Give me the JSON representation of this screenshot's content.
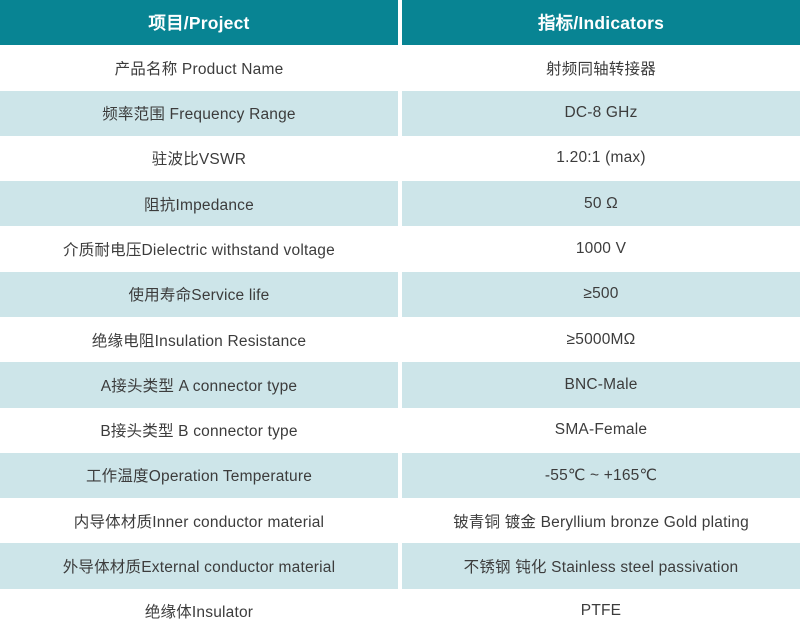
{
  "table": {
    "title": "RF coaxial adapter specification table",
    "columns": [
      {
        "label": "项目/Project"
      },
      {
        "label": "指标/Indicators"
      }
    ],
    "rows": [
      {
        "project": "产品名称 Product Name",
        "indicator": "射频同轴转接器"
      },
      {
        "project": "频率范围 Frequency Range",
        "indicator": "DC-8 GHz"
      },
      {
        "project": "驻波比VSWR",
        "indicator": "1.20:1 (max)"
      },
      {
        "project": "阻抗Impedance",
        "indicator": "50 Ω"
      },
      {
        "project": "介质耐电压Dielectric withstand voltage",
        "indicator": "1000 V"
      },
      {
        "project": "使用寿命Service life",
        "indicator": "≥500"
      },
      {
        "project": "绝缘电阻Insulation Resistance",
        "indicator": "≥5000MΩ"
      },
      {
        "project": "A接头类型 A connector type",
        "indicator": "BNC-Male"
      },
      {
        "project": "B接头类型 B connector type",
        "indicator": "SMA-Female"
      },
      {
        "project": "工作温度Operation Temperature",
        "indicator": "-55℃ ~ +165℃"
      },
      {
        "project": "内导体材质Inner conductor material",
        "indicator": "铍青铜 镀金 Beryllium bronze Gold plating"
      },
      {
        "project": "外导体材质External conductor material",
        "indicator": "不锈钢 钝化 Stainless steel passivation"
      },
      {
        "project": "绝缘体Insulator",
        "indicator": "PTFE"
      }
    ],
    "colors": {
      "header_bg": "#088493",
      "header_text": "#ffffff",
      "row_bg": "#ffffff",
      "row_alt_bg": "#cde5e9",
      "body_text": "#3c3c3c",
      "divider": "#ffffff"
    }
  }
}
